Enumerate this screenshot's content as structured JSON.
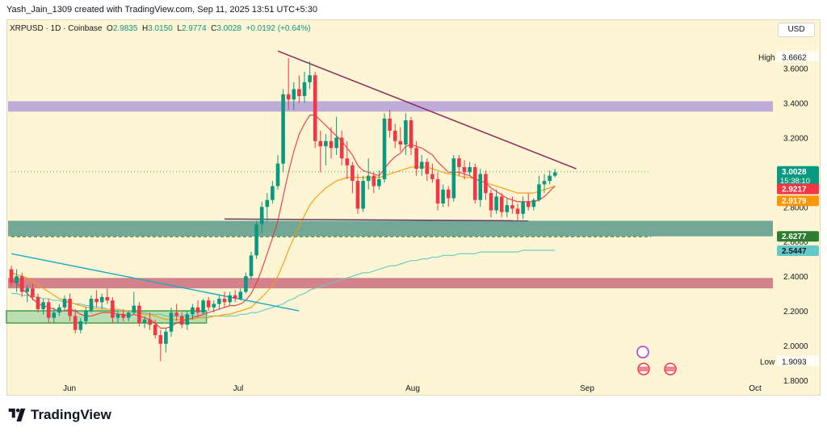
{
  "header": {
    "created_by": "Yash_Jain_1309 created with TradingView.com, Sep 11, 2025 13:51 UTC+5:30"
  },
  "symbol": {
    "ticker": "XRPUSD · 1D · Coinbase",
    "o_label": "O",
    "o": "2.9835",
    "h_label": "H",
    "h": "3.0150",
    "l_label": "L",
    "l": "2.9774",
    "c_label": "C",
    "c": "3.0028",
    "change": "+0.0192 (+0.64%)"
  },
  "currency": "USD",
  "footer": {
    "brand": "TradingView"
  },
  "badges": {
    "high_label": "High",
    "high_value": "3.6662",
    "low_label": "Low",
    "low_value": "1.9093",
    "last_price": "3.0028",
    "countdown": "15:38:10",
    "ma_red": "2.9217",
    "ma_orange": "2.9179",
    "level_dashed": "2.6277",
    "ma_teal": "2.5447"
  },
  "colors": {
    "up": "#089981",
    "down": "#f23645",
    "background": "#fdf5d3",
    "ma_fast": "#f23645",
    "ma_mid": "#ff9800",
    "ma_slow": "#64c8c8",
    "resistance_zone": "#b39ddb",
    "support_zone_upper": "#5b9a8b",
    "support_zone_lower": "#c8657a",
    "june_box": "#a5d6a7",
    "trendline_down": "#8e2a5a",
    "trendline_blue": "#22a6c8"
  },
  "chart_data": {
    "type": "candlestick",
    "ylim": [
      1.72,
      3.78
    ],
    "y_ticks": [
      "3.6000",
      "3.4000",
      "3.2000",
      "3.0000",
      "2.8000",
      "2.6000",
      "2.4000",
      "2.2000",
      "2.0000",
      "1.8000"
    ],
    "x_ticks": [
      "Jun",
      "Jul",
      "Aug",
      "Sep",
      "Oct"
    ],
    "candles": [
      [
        2.44,
        2.46,
        2.34,
        2.36
      ],
      [
        2.36,
        2.44,
        2.31,
        2.4
      ],
      [
        2.4,
        2.42,
        2.28,
        2.31
      ],
      [
        2.31,
        2.35,
        2.25,
        2.33
      ],
      [
        2.33,
        2.36,
        2.26,
        2.28
      ],
      [
        2.28,
        2.3,
        2.19,
        2.21
      ],
      [
        2.21,
        2.27,
        2.18,
        2.25
      ],
      [
        2.25,
        2.27,
        2.13,
        2.16
      ],
      [
        2.16,
        2.22,
        2.13,
        2.19
      ],
      [
        2.19,
        2.24,
        2.17,
        2.22
      ],
      [
        2.22,
        2.29,
        2.2,
        2.27
      ],
      [
        2.27,
        2.3,
        2.14,
        2.17
      ],
      [
        2.17,
        2.21,
        2.07,
        2.09
      ],
      [
        2.09,
        2.16,
        2.07,
        2.14
      ],
      [
        2.14,
        2.22,
        2.12,
        2.2
      ],
      [
        2.2,
        2.29,
        2.19,
        2.27
      ],
      [
        2.27,
        2.32,
        2.22,
        2.25
      ],
      [
        2.25,
        2.3,
        2.21,
        2.28
      ],
      [
        2.28,
        2.33,
        2.24,
        2.26
      ],
      [
        2.26,
        2.28,
        2.13,
        2.16
      ],
      [
        2.16,
        2.2,
        2.13,
        2.18
      ],
      [
        2.18,
        2.21,
        2.14,
        2.16
      ],
      [
        2.16,
        2.2,
        2.14,
        2.19
      ],
      [
        2.19,
        2.31,
        2.18,
        2.23
      ],
      [
        2.23,
        2.25,
        2.11,
        2.13
      ],
      [
        2.13,
        2.17,
        2.1,
        2.15
      ],
      [
        2.15,
        2.19,
        2.09,
        2.12
      ],
      [
        2.12,
        2.15,
        2.04,
        2.06
      ],
      [
        2.06,
        2.09,
        1.91,
        2.01
      ],
      [
        2.01,
        2.1,
        1.96,
        2.08
      ],
      [
        2.08,
        2.22,
        2.05,
        2.19
      ],
      [
        2.19,
        2.24,
        2.14,
        2.17
      ],
      [
        2.17,
        2.19,
        2.1,
        2.12
      ],
      [
        2.12,
        2.2,
        2.09,
        2.18
      ],
      [
        2.18,
        2.24,
        2.15,
        2.22
      ],
      [
        2.22,
        2.26,
        2.16,
        2.19
      ],
      [
        2.19,
        2.27,
        2.18,
        2.26
      ],
      [
        2.26,
        2.28,
        2.2,
        2.22
      ],
      [
        2.22,
        2.26,
        2.19,
        2.24
      ],
      [
        2.24,
        2.29,
        2.21,
        2.27
      ],
      [
        2.27,
        2.31,
        2.22,
        2.25
      ],
      [
        2.25,
        2.31,
        2.23,
        2.29
      ],
      [
        2.29,
        2.32,
        2.25,
        2.27
      ],
      [
        2.27,
        2.33,
        2.26,
        2.31
      ],
      [
        2.31,
        2.42,
        2.3,
        2.4
      ],
      [
        2.4,
        2.54,
        2.38,
        2.52
      ],
      [
        2.52,
        2.72,
        2.5,
        2.7
      ],
      [
        2.7,
        2.83,
        2.65,
        2.8
      ],
      [
        2.8,
        2.88,
        2.72,
        2.84
      ],
      [
        2.84,
        2.95,
        2.82,
        2.92
      ],
      [
        2.92,
        3.1,
        2.9,
        3.05
      ],
      [
        3.05,
        3.48,
        3.0,
        3.45
      ],
      [
        3.45,
        3.66,
        3.36,
        3.42
      ],
      [
        3.42,
        3.52,
        3.36,
        3.48
      ],
      [
        3.48,
        3.56,
        3.4,
        3.44
      ],
      [
        3.44,
        3.58,
        3.4,
        3.52
      ],
      [
        3.52,
        3.64,
        3.48,
        3.56
      ],
      [
        3.56,
        3.58,
        3.14,
        3.18
      ],
      [
        3.18,
        3.24,
        3.0,
        3.15
      ],
      [
        3.15,
        3.22,
        3.04,
        3.18
      ],
      [
        3.18,
        3.26,
        3.08,
        3.14
      ],
      [
        3.14,
        3.32,
        3.1,
        3.2
      ],
      [
        3.2,
        3.24,
        3.04,
        3.08
      ],
      [
        3.08,
        3.18,
        2.96,
        3.04
      ],
      [
        3.04,
        3.06,
        2.88,
        2.95
      ],
      [
        2.95,
        2.99,
        2.76,
        2.79
      ],
      [
        2.79,
        2.98,
        2.77,
        2.95
      ],
      [
        2.95,
        3.08,
        2.9,
        2.98
      ],
      [
        2.98,
        3.0,
        2.88,
        2.92
      ],
      [
        2.92,
        3.01,
        2.9,
        2.96
      ],
      [
        2.96,
        3.34,
        2.94,
        3.31
      ],
      [
        3.31,
        3.36,
        3.2,
        3.24
      ],
      [
        3.24,
        3.28,
        3.14,
        3.18
      ],
      [
        3.18,
        3.26,
        3.12,
        3.16
      ],
      [
        3.16,
        3.34,
        3.1,
        3.3
      ],
      [
        3.3,
        3.32,
        3.1,
        3.14
      ],
      [
        3.14,
        3.18,
        2.98,
        3.02
      ],
      [
        3.02,
        3.1,
        2.98,
        3.06
      ],
      [
        3.06,
        3.08,
        2.95,
        2.99
      ],
      [
        2.99,
        3.05,
        2.94,
        2.96
      ],
      [
        2.96,
        3.0,
        2.78,
        2.82
      ],
      [
        2.82,
        2.93,
        2.8,
        2.9
      ],
      [
        2.9,
        2.92,
        2.8,
        2.85
      ],
      [
        2.85,
        3.1,
        2.83,
        3.08
      ],
      [
        3.08,
        3.1,
        2.98,
        3.03
      ],
      [
        3.03,
        3.07,
        2.96,
        3.0
      ],
      [
        3.0,
        3.06,
        2.98,
        3.03
      ],
      [
        3.03,
        3.05,
        2.82,
        2.84
      ],
      [
        2.84,
        3.02,
        2.8,
        2.99
      ],
      [
        2.99,
        3.01,
        2.84,
        2.88
      ],
      [
        2.88,
        2.9,
        2.74,
        2.78
      ],
      [
        2.78,
        2.9,
        2.76,
        2.86
      ],
      [
        2.86,
        2.88,
        2.74,
        2.77
      ],
      [
        2.77,
        2.85,
        2.74,
        2.81
      ],
      [
        2.81,
        2.86,
        2.76,
        2.79
      ],
      [
        2.79,
        2.82,
        2.72,
        2.76
      ],
      [
        2.76,
        2.86,
        2.73,
        2.83
      ],
      [
        2.83,
        2.88,
        2.78,
        2.8
      ],
      [
        2.8,
        2.85,
        2.78,
        2.84
      ],
      [
        2.84,
        2.98,
        2.83,
        2.93
      ],
      [
        2.93,
        2.99,
        2.88,
        2.95
      ],
      [
        2.95,
        3.01,
        2.93,
        2.98
      ],
      [
        2.98,
        3.02,
        2.97,
        3.0
      ]
    ],
    "ma_fast": [
      2.38,
      2.36,
      2.33,
      2.3,
      2.27,
      2.24,
      2.23,
      2.22,
      2.21,
      2.2,
      2.2,
      2.21,
      2.2,
      2.18,
      2.17,
      2.17,
      2.18,
      2.19,
      2.19,
      2.19,
      2.18,
      2.18,
      2.17,
      2.18,
      2.17,
      2.16,
      2.15,
      2.13,
      2.1,
      2.1,
      2.11,
      2.13,
      2.14,
      2.15,
      2.16,
      2.17,
      2.18,
      2.19,
      2.2,
      2.21,
      2.22,
      2.23,
      2.23,
      2.24,
      2.26,
      2.3,
      2.36,
      2.44,
      2.53,
      2.62,
      2.72,
      2.86,
      3.0,
      3.12,
      3.22,
      3.28,
      3.33,
      3.33,
      3.3,
      3.27,
      3.24,
      3.21,
      3.18,
      3.14,
      3.1,
      3.04,
      3.01,
      3.0,
      2.99,
      2.98,
      3.02,
      3.06,
      3.09,
      3.11,
      3.15,
      3.16,
      3.15,
      3.14,
      3.12,
      3.1,
      3.06,
      3.03,
      3.0,
      3.0,
      3.0,
      2.99,
      2.98,
      2.96,
      2.95,
      2.94,
      2.91,
      2.89,
      2.87,
      2.85,
      2.84,
      2.83,
      2.83,
      2.83,
      2.83,
      2.84,
      2.86,
      2.89,
      2.92
    ],
    "ma_mid": [
      2.42,
      2.41,
      2.4,
      2.39,
      2.37,
      2.35,
      2.33,
      2.31,
      2.29,
      2.27,
      2.26,
      2.25,
      2.24,
      2.23,
      2.22,
      2.22,
      2.21,
      2.21,
      2.21,
      2.21,
      2.21,
      2.2,
      2.2,
      2.2,
      2.19,
      2.18,
      2.18,
      2.17,
      2.16,
      2.15,
      2.15,
      2.15,
      2.15,
      2.15,
      2.15,
      2.16,
      2.16,
      2.16,
      2.17,
      2.17,
      2.18,
      2.18,
      2.19,
      2.2,
      2.21,
      2.22,
      2.25,
      2.28,
      2.31,
      2.35,
      2.4,
      2.47,
      2.55,
      2.62,
      2.69,
      2.75,
      2.81,
      2.85,
      2.88,
      2.91,
      2.93,
      2.95,
      2.96,
      2.97,
      2.97,
      2.97,
      2.97,
      2.97,
      2.97,
      2.97,
      2.98,
      2.99,
      3.0,
      3.01,
      3.02,
      3.03,
      3.03,
      3.03,
      3.03,
      3.02,
      3.01,
      3.0,
      2.99,
      2.99,
      2.98,
      2.97,
      2.97,
      2.96,
      2.95,
      2.94,
      2.93,
      2.92,
      2.91,
      2.9,
      2.89,
      2.88,
      2.88,
      2.88,
      2.88,
      2.89,
      2.9,
      2.91,
      2.92
    ],
    "ma_slow": [
      2.3,
      2.3,
      2.29,
      2.29,
      2.28,
      2.28,
      2.27,
      2.27,
      2.26,
      2.26,
      2.25,
      2.25,
      2.24,
      2.24,
      2.23,
      2.23,
      2.22,
      2.22,
      2.21,
      2.21,
      2.2,
      2.2,
      2.2,
      2.19,
      2.19,
      2.19,
      2.18,
      2.18,
      2.18,
      2.17,
      2.17,
      2.17,
      2.17,
      2.17,
      2.17,
      2.17,
      2.17,
      2.17,
      2.17,
      2.17,
      2.17,
      2.17,
      2.17,
      2.18,
      2.18,
      2.19,
      2.19,
      2.2,
      2.21,
      2.22,
      2.23,
      2.24,
      2.26,
      2.27,
      2.29,
      2.3,
      2.32,
      2.33,
      2.34,
      2.35,
      2.36,
      2.37,
      2.38,
      2.39,
      2.4,
      2.41,
      2.42,
      2.42,
      2.43,
      2.44,
      2.45,
      2.46,
      2.46,
      2.47,
      2.48,
      2.49,
      2.49,
      2.5,
      2.5,
      2.51,
      2.51,
      2.52,
      2.52,
      2.52,
      2.53,
      2.53,
      2.53,
      2.53,
      2.54,
      2.54,
      2.54,
      2.54,
      2.54,
      2.54,
      2.54,
      2.54,
      2.55,
      2.55,
      2.55,
      2.55,
      2.55,
      2.55,
      2.55
    ],
    "zones": [
      {
        "name": "resistance",
        "from": 3.35,
        "to": 3.41
      },
      {
        "name": "support-upper",
        "from": 2.63,
        "to": 2.72
      },
      {
        "name": "support-lower",
        "from": 2.33,
        "to": 2.39
      },
      {
        "name": "june-range",
        "from": 2.13,
        "to": 2.2,
        "x_from": 0,
        "x_to": 36
      }
    ],
    "lines": [
      {
        "name": "descending-trendline",
        "points": [
          [
            50,
            3.7
          ],
          [
            106,
            3.02
          ]
        ]
      },
      {
        "name": "horizontal-support",
        "points": [
          [
            40,
            2.73
          ],
          [
            97,
            2.72
          ]
        ]
      },
      {
        "name": "blue-trendline",
        "points": [
          [
            0,
            2.53
          ],
          [
            54,
            2.2
          ]
        ]
      },
      {
        "name": "dashed-level",
        "points": [
          [
            0,
            2.6277
          ],
          [
            120,
            2.6277
          ]
        ]
      },
      {
        "name": "last-price-dotted",
        "points": [
          [
            0,
            3.0028
          ],
          [
            120,
            3.0028
          ]
        ]
      }
    ]
  }
}
